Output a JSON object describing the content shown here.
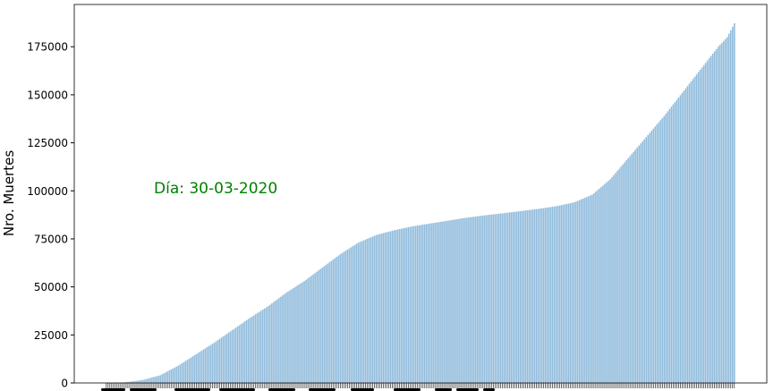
{
  "chart_data": {
    "type": "bar",
    "ylabel": "Nro. Muertes",
    "annotation": "Día: 30-03-2020",
    "ylim": [
      0,
      197000
    ],
    "yticks": [
      0,
      25000,
      50000,
      75000,
      100000,
      125000,
      150000,
      175000
    ],
    "bar_count": 350,
    "grid": false,
    "colors": {
      "bar": "#91bcdc",
      "annotation": "#008000",
      "axis": "#000000"
    },
    "curve": [
      [
        0,
        0
      ],
      [
        10,
        300
      ],
      [
        20,
        1500
      ],
      [
        30,
        4000
      ],
      [
        40,
        9000
      ],
      [
        50,
        15000
      ],
      [
        60,
        21000
      ],
      [
        70,
        27500
      ],
      [
        80,
        34000
      ],
      [
        90,
        40000
      ],
      [
        100,
        47000
      ],
      [
        110,
        53000
      ],
      [
        120,
        60000
      ],
      [
        130,
        67000
      ],
      [
        140,
        73000
      ],
      [
        150,
        77000
      ],
      [
        160,
        79500
      ],
      [
        170,
        81500
      ],
      [
        180,
        83000
      ],
      [
        190,
        84500
      ],
      [
        200,
        86000
      ],
      [
        210,
        87200
      ],
      [
        220,
        88300
      ],
      [
        230,
        89400
      ],
      [
        240,
        90600
      ],
      [
        250,
        92000
      ],
      [
        260,
        94000
      ],
      [
        270,
        98000
      ],
      [
        280,
        106000
      ],
      [
        290,
        117000
      ],
      [
        300,
        128000
      ],
      [
        310,
        139000
      ],
      [
        320,
        151000
      ],
      [
        330,
        163000
      ],
      [
        340,
        175000
      ],
      [
        345,
        180000
      ],
      [
        350,
        189000
      ]
    ]
  }
}
